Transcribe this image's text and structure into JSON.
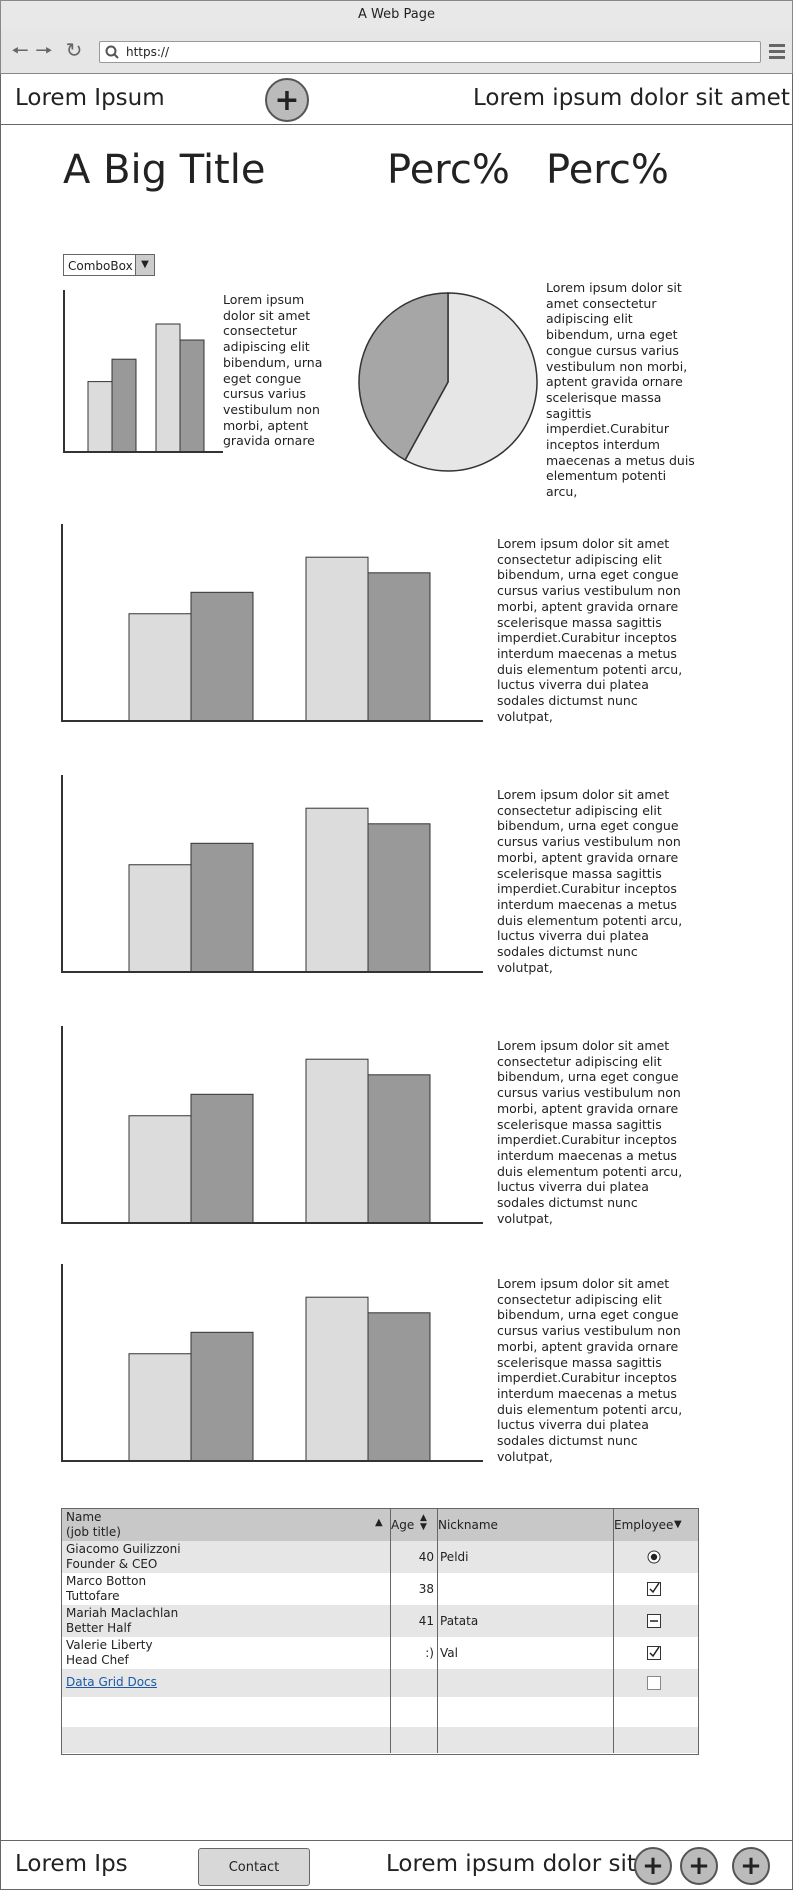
{
  "window": {
    "title": "A Web Page"
  },
  "browser": {
    "url": "https://"
  },
  "header": {
    "left_text": "Lorem Ipsum",
    "right_text": "Lorem ipsum dolor sit amet",
    "add_icon": "plus-icon"
  },
  "hero": {
    "title": "A Big Title",
    "perc1": "Perc%",
    "perc2": "Perc%"
  },
  "combo": {
    "value": "ComboBox"
  },
  "small_chart_text": "Lorem ipsum dolor sit amet consectetur adipiscing elit bibendum, urna eget congue cursus varius vestibulum non morbi, aptent gravida ornare",
  "pie_text": "Lorem ipsum dolor sit amet consectetur adipiscing elit bibendum, urna eget congue cursus varius vestibulum non morbi, aptent gravida ornare scelerisque massa sagittis imperdiet.Curabitur inceptos interdum maecenas a metus duis elementum potenti arcu,",
  "section_text_1": "Lorem ipsum dolor sit amet consectetur adipiscing elit bibendum, urna eget congue cursus varius vestibulum non morbi, aptent gravida ornare scelerisque massa sagittis imperdiet.Curabitur inceptos interdum maecenas a metus duis elementum potenti arcu, luctus viverra dui platea sodales dictumst nunc volutpat,",
  "section_text_2": "Lorem ipsum dolor sit amet consectetur adipiscing elit bibendum, urna eget congue cursus varius vestibulum non morbi, aptent gravida ornare scelerisque massa sagittis imperdiet.Curabitur inceptos interdum maecenas a metus duis elementum potenti arcu, luctus viverra dui platea sodales dictumst nunc volutpat,",
  "section_text_3": "Lorem ipsum dolor sit amet consectetur adipiscing elit bibendum, urna eget congue cursus varius vestibulum non morbi, aptent gravida ornare scelerisque massa sagittis imperdiet.Curabitur inceptos interdum maecenas a metus duis elementum potenti arcu, luctus viverra dui platea sodales dictumst nunc volutpat,",
  "section_text_4": "Lorem ipsum dolor sit amet consectetur adipiscing elit bibendum, urna eget congue cursus varius vestibulum non morbi, aptent gravida ornare scelerisque massa sagittis imperdiet.Curabitur inceptos interdum maecenas a metus duis elementum potenti arcu, luctus viverra dui platea sodales dictumst nunc volutpat,",
  "chart_data": [
    {
      "type": "bar",
      "categories": [
        "",
        ""
      ],
      "series": [
        {
          "values": [
            44,
            58
          ]
        },
        {
          "values": [
            80,
            70
          ]
        }
      ]
    },
    {
      "type": "pie",
      "values": [
        58,
        42
      ]
    },
    {
      "type": "bar",
      "categories": [
        "",
        ""
      ],
      "series": [
        {
          "values": [
            55,
            66
          ]
        },
        {
          "values": [
            84,
            76
          ]
        }
      ]
    },
    {
      "type": "bar",
      "categories": [
        "",
        ""
      ],
      "series": [
        {
          "values": [
            55,
            66
          ]
        },
        {
          "values": [
            84,
            76
          ]
        }
      ]
    },
    {
      "type": "bar",
      "categories": [
        "",
        ""
      ],
      "series": [
        {
          "values": [
            55,
            66
          ]
        },
        {
          "values": [
            84,
            76
          ]
        }
      ]
    },
    {
      "type": "bar",
      "categories": [
        "",
        ""
      ],
      "series": [
        {
          "values": [
            55,
            66
          ]
        },
        {
          "values": [
            84,
            76
          ]
        }
      ]
    }
  ],
  "grid": {
    "headers": {
      "name": "Name\n(job title)",
      "age": "Age",
      "nickname": "Nickname",
      "employee": "Employee"
    },
    "rows": [
      {
        "name": "Giacomo Guilizzoni\nFounder & CEO",
        "age": "40",
        "nickname": "Peldi",
        "employee": "radio-selected"
      },
      {
        "name": "Marco Botton\nTuttofare",
        "age": "38",
        "nickname": "",
        "employee": "checked"
      },
      {
        "name": "Mariah Maclachlan\nBetter Half",
        "age": "41",
        "nickname": "Patata",
        "employee": "indeterminate"
      },
      {
        "name": "Valerie Liberty\nHead Chef",
        "age": ":)",
        "nickname": "Val",
        "employee": "checked"
      },
      {
        "name": "Data Grid Docs",
        "age": "",
        "nickname": "",
        "employee": "unchecked"
      }
    ]
  },
  "footer": {
    "left_text": "Lorem Ips",
    "contact_label": "Contact",
    "right_text": "Lorem ipsum dolor sit"
  }
}
